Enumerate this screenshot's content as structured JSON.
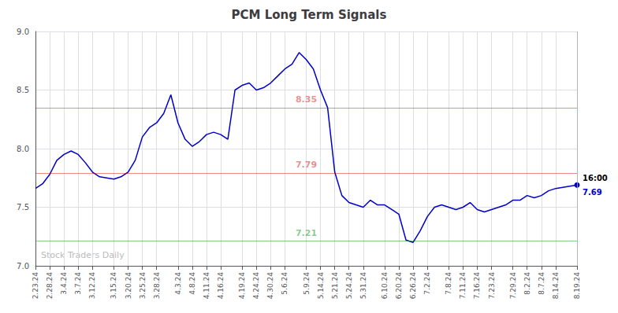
{
  "chart_data": {
    "type": "line",
    "title": "PCM Long Term Signals",
    "categories": [
      "2.23.24",
      null,
      "2.28.24",
      null,
      "3.4.24",
      null,
      "3.7.24",
      null,
      "3.12.24",
      null,
      null,
      "3.15.24",
      null,
      "3.20.24",
      null,
      "3.25.24",
      null,
      "3.28.24",
      null,
      null,
      "4.3.24",
      null,
      "4.8.24",
      null,
      "4.11.24",
      null,
      "4.16.24",
      null,
      null,
      "4.19.24",
      null,
      "4.24.24",
      null,
      "4.30.24",
      null,
      "5.6.24",
      null,
      null,
      "5.9.24",
      null,
      "5.14.24",
      null,
      "5.21.24",
      null,
      "5.24.24",
      null,
      "5.31.24",
      null,
      null,
      "6.10.24",
      null,
      "6.20.24",
      null,
      "6.26.24",
      null,
      "7.2.24",
      null,
      null,
      "7.8.24",
      null,
      "7.11.24",
      null,
      "7.16.24",
      null,
      "7.23.24",
      null,
      null,
      "7.29.24",
      null,
      "8.2.24",
      null,
      "8.7.24",
      null,
      "8.14.24",
      null,
      null,
      "8.19.24"
    ],
    "values": [
      7.66,
      7.7,
      7.78,
      7.9,
      7.95,
      7.98,
      7.95,
      7.88,
      7.8,
      7.76,
      7.75,
      7.74,
      7.76,
      7.8,
      7.9,
      8.1,
      8.18,
      8.22,
      8.3,
      8.46,
      8.22,
      8.08,
      8.02,
      8.06,
      8.12,
      8.14,
      8.12,
      8.08,
      8.5,
      8.54,
      8.56,
      8.5,
      8.52,
      8.56,
      8.62,
      8.68,
      8.72,
      8.82,
      8.76,
      8.68,
      8.5,
      8.35,
      7.8,
      7.6,
      7.54,
      7.52,
      7.5,
      7.56,
      7.52,
      7.52,
      7.48,
      7.44,
      7.22,
      7.2,
      7.3,
      7.42,
      7.5,
      7.52,
      7.5,
      7.48,
      7.5,
      7.54,
      7.48,
      7.46,
      7.48,
      7.5,
      7.52,
      7.56,
      7.56,
      7.6,
      7.58,
      7.6,
      7.64,
      7.66,
      7.67,
      7.68,
      7.69
    ],
    "color": "#0000cc",
    "ylim": [
      7.0,
      9.0
    ],
    "yticks": [
      {
        "value": 7.0,
        "label": "7.0"
      },
      7.5,
      {
        "value": 8.0,
        "label": "8.0"
      },
      8.5,
      {
        "value": 9.0,
        "label": "9.0"
      }
    ],
    "grid": true,
    "reference_lines": [
      {
        "value": 8.35,
        "label": "8.35",
        "color": "#cc0000"
      },
      {
        "value": 7.79,
        "label": "7.79",
        "color": "#cc0000"
      },
      {
        "value": 7.21,
        "label": "7.21",
        "color": "#008800"
      }
    ],
    "annotations": [
      {
        "text": "16:00",
        "x": "8.19.24",
        "y": 7.69
      },
      {
        "text": "7.69",
        "x": "8.19.24",
        "y": 7.69
      }
    ],
    "watermark": "Stock Traders Daily"
  }
}
